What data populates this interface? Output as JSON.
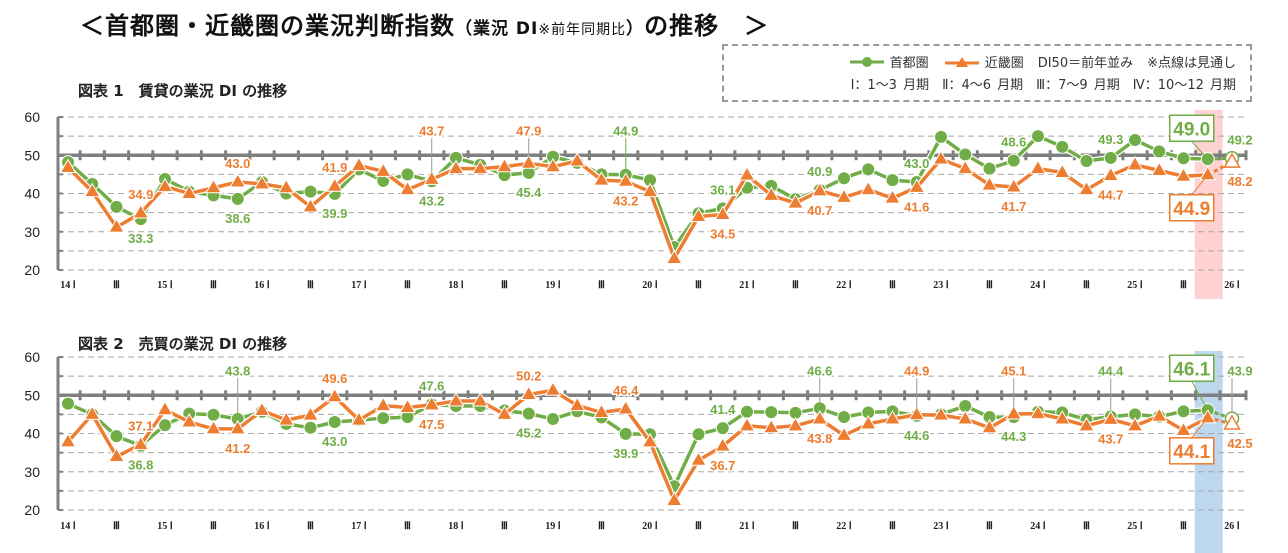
{
  "header": {
    "title_main": "＜首都圏・近畿圏の業況判断指数",
    "title_paren_open": "（業況 DI",
    "title_note": "※前年同期比",
    "title_paren_close": "）",
    "title_tail": "の推移　＞"
  },
  "legend": {
    "series1_label": "首都圏",
    "series2_label": "近畿圏",
    "baseline_note": "DI50＝前年並み",
    "dotted_note": "※点線は見通し",
    "quarters_note": "Ⅰ：1～3 月期　Ⅱ：4～6 月期　Ⅲ：7～9 月期　Ⅳ：10～12 月期"
  },
  "colors": {
    "tokyo": "#70ad47",
    "kinki": "#ed7d31",
    "baseline": "#7f7f7f",
    "grid": "#a6a6a6",
    "highlight1": "#ffd1d1",
    "highlight2": "#bdd7ee"
  },
  "chart_data": [
    {
      "type": "line",
      "title": "図表 1　賃貸の業況 DI の推移",
      "xlabel": "",
      "ylabel": "",
      "ylim": [
        20,
        60
      ],
      "yticks": [
        "60",
        "50",
        "40",
        "30",
        "20"
      ],
      "baseline": 50,
      "grid": true,
      "x_tick_labels": [
        "14 Ⅰ",
        "Ⅲ",
        "15 Ⅰ",
        "Ⅲ",
        "16 Ⅰ",
        "Ⅲ",
        "17 Ⅰ",
        "Ⅲ",
        "18 Ⅰ",
        "Ⅲ",
        "19 Ⅰ",
        "Ⅲ",
        "20 Ⅰ",
        "Ⅲ",
        "21 Ⅰ",
        "Ⅲ",
        "22 Ⅰ",
        "Ⅲ",
        "23 Ⅰ",
        "Ⅲ",
        "24 Ⅰ",
        "Ⅲ",
        "25 Ⅰ",
        "Ⅲ",
        "26 Ⅰ"
      ],
      "forecast_index": 48,
      "highlight_index": 47,
      "series": [
        {
          "name": "首都圏",
          "values": [
            48.2,
            42.5,
            36.5,
            33.3,
            43.8,
            40.5,
            39.5,
            38.6,
            43.0,
            40.0,
            40.5,
            39.9,
            46.3,
            43.3,
            45.0,
            43.2,
            49.3,
            47.5,
            44.8,
            45.4,
            49.6,
            48.0,
            45.0,
            44.9,
            43.5,
            26.0,
            34.8,
            36.1,
            41.5,
            42.0,
            38.5,
            40.9,
            44.0,
            46.3,
            43.5,
            43.0,
            54.8,
            50.2,
            46.5,
            48.6,
            55.0,
            52.2,
            48.5,
            49.3,
            54.0,
            51.0,
            49.2,
            49.0,
            49.2
          ]
        },
        {
          "name": "近畿圏",
          "values": [
            46.8,
            40.5,
            31.2,
            34.9,
            41.8,
            40.0,
            41.5,
            43.0,
            42.5,
            41.5,
            36.5,
            41.9,
            47.3,
            45.8,
            41.0,
            43.7,
            46.5,
            46.5,
            47.0,
            47.9,
            47.0,
            48.5,
            43.5,
            43.2,
            40.5,
            23.0,
            34.0,
            34.5,
            44.8,
            39.5,
            37.5,
            40.7,
            39.0,
            41.0,
            38.8,
            41.6,
            49.0,
            46.5,
            42.2,
            41.7,
            46.5,
            45.5,
            41.0,
            44.7,
            47.5,
            46.0,
            44.5,
            44.9,
            48.2
          ]
        }
      ],
      "annotations": [
        {
          "series": 0,
          "index": 3,
          "text": "33.3",
          "pos": "below"
        },
        {
          "series": 1,
          "index": 3,
          "text": "34.9",
          "pos": "above"
        },
        {
          "series": 0,
          "index": 7,
          "text": "38.6",
          "pos": "below"
        },
        {
          "series": 1,
          "index": 7,
          "text": "43.0",
          "pos": "above"
        },
        {
          "series": 0,
          "index": 11,
          "text": "39.9",
          "pos": "below"
        },
        {
          "series": 1,
          "index": 11,
          "text": "41.9",
          "pos": "above"
        },
        {
          "series": 0,
          "index": 15,
          "text": "43.2",
          "pos": "below"
        },
        {
          "series": 1,
          "index": 15,
          "text": "43.7",
          "pos": "above-far"
        },
        {
          "series": 0,
          "index": 19,
          "text": "45.4",
          "pos": "below"
        },
        {
          "series": 1,
          "index": 19,
          "text": "47.9",
          "pos": "above-far"
        },
        {
          "series": 0,
          "index": 23,
          "text": "44.9",
          "pos": "above-far"
        },
        {
          "series": 1,
          "index": 23,
          "text": "43.2",
          "pos": "below"
        },
        {
          "series": 0,
          "index": 27,
          "text": "36.1",
          "pos": "above"
        },
        {
          "series": 1,
          "index": 27,
          "text": "34.5",
          "pos": "below"
        },
        {
          "series": 0,
          "index": 31,
          "text": "40.9",
          "pos": "above"
        },
        {
          "series": 1,
          "index": 31,
          "text": "40.7",
          "pos": "below"
        },
        {
          "series": 0,
          "index": 35,
          "text": "43.0",
          "pos": "above"
        },
        {
          "series": 1,
          "index": 35,
          "text": "41.6",
          "pos": "below"
        },
        {
          "series": 0,
          "index": 39,
          "text": "48.6",
          "pos": "above"
        },
        {
          "series": 1,
          "index": 39,
          "text": "41.7",
          "pos": "below"
        },
        {
          "series": 0,
          "index": 43,
          "text": "49.3",
          "pos": "above"
        },
        {
          "series": 1,
          "index": 43,
          "text": "44.7",
          "pos": "below"
        },
        {
          "series": 0,
          "index": 47,
          "text": "49.0",
          "pos": "box-above"
        },
        {
          "series": 1,
          "index": 47,
          "text": "44.9",
          "pos": "box-below"
        },
        {
          "series": 0,
          "index": 48,
          "text": "49.2",
          "pos": "above"
        },
        {
          "series": 1,
          "index": 48,
          "text": "48.2",
          "pos": "below"
        }
      ]
    },
    {
      "type": "line",
      "title": "図表 2　売買の業況 DI の推移",
      "xlabel": "",
      "ylabel": "",
      "ylim": [
        20,
        60
      ],
      "yticks": [
        "60",
        "50",
        "40",
        "30",
        "20"
      ],
      "baseline": 50,
      "grid": true,
      "x_tick_labels": [
        "14 Ⅰ",
        "Ⅲ",
        "15 Ⅰ",
        "Ⅲ",
        "16 Ⅰ",
        "Ⅲ",
        "17 Ⅰ",
        "Ⅲ",
        "18 Ⅰ",
        "Ⅲ",
        "19 Ⅰ",
        "Ⅲ",
        "20 Ⅰ",
        "Ⅲ",
        "21 Ⅰ",
        "Ⅲ",
        "22 Ⅰ",
        "Ⅲ",
        "23 Ⅰ",
        "Ⅲ",
        "24 Ⅰ",
        "Ⅲ",
        "25 Ⅰ",
        "Ⅲ",
        "26 Ⅰ"
      ],
      "forecast_index": 48,
      "highlight_index": 47,
      "series": [
        {
          "name": "首都圏",
          "values": [
            47.8,
            45.0,
            39.3,
            36.8,
            42.2,
            45.2,
            44.9,
            43.8,
            45.7,
            42.5,
            41.5,
            43.0,
            43.5,
            44.0,
            44.3,
            47.6,
            47.2,
            47.2,
            46.0,
            45.2,
            43.8,
            45.8,
            44.2,
            39.9,
            39.8,
            26.2,
            39.8,
            41.4,
            45.7,
            45.6,
            45.4,
            46.6,
            44.3,
            45.5,
            45.8,
            44.6,
            45.0,
            47.2,
            44.3,
            44.3,
            45.7,
            45.5,
            43.6,
            44.4,
            45.0,
            44.4,
            45.8,
            46.1,
            43.9
          ]
        },
        {
          "name": "近畿圏",
          "values": [
            37.8,
            45.0,
            34.0,
            37.1,
            46.2,
            43.0,
            41.2,
            41.2,
            46.0,
            43.5,
            44.8,
            49.6,
            43.5,
            47.3,
            46.8,
            47.5,
            48.5,
            48.5,
            45.0,
            50.2,
            51.3,
            47.3,
            45.5,
            46.4,
            37.8,
            22.5,
            33.0,
            36.7,
            42.0,
            41.5,
            42.0,
            43.8,
            39.5,
            42.5,
            43.8,
            44.9,
            44.8,
            43.8,
            41.5,
            45.1,
            45.2,
            43.8,
            42.0,
            43.7,
            42.0,
            44.5,
            40.8,
            44.1,
            42.5
          ]
        }
      ],
      "annotations": [
        {
          "series": 0,
          "index": 3,
          "text": "36.8",
          "pos": "below"
        },
        {
          "series": 1,
          "index": 3,
          "text": "37.1",
          "pos": "above"
        },
        {
          "series": 0,
          "index": 7,
          "text": "43.8",
          "pos": "above-far"
        },
        {
          "series": 1,
          "index": 7,
          "text": "41.2",
          "pos": "below"
        },
        {
          "series": 0,
          "index": 11,
          "text": "43.0",
          "pos": "below"
        },
        {
          "series": 1,
          "index": 11,
          "text": "49.6",
          "pos": "above"
        },
        {
          "series": 0,
          "index": 15,
          "text": "47.6",
          "pos": "above"
        },
        {
          "series": 1,
          "index": 15,
          "text": "47.5",
          "pos": "below"
        },
        {
          "series": 0,
          "index": 19,
          "text": "45.2",
          "pos": "below"
        },
        {
          "series": 1,
          "index": 19,
          "text": "50.2",
          "pos": "above"
        },
        {
          "series": 0,
          "index": 23,
          "text": "39.9",
          "pos": "below"
        },
        {
          "series": 1,
          "index": 23,
          "text": "46.4",
          "pos": "above"
        },
        {
          "series": 0,
          "index": 27,
          "text": "41.4",
          "pos": "above"
        },
        {
          "series": 1,
          "index": 27,
          "text": "36.7",
          "pos": "below"
        },
        {
          "series": 0,
          "index": 31,
          "text": "46.6",
          "pos": "above-far"
        },
        {
          "series": 1,
          "index": 31,
          "text": "43.8",
          "pos": "below"
        },
        {
          "series": 0,
          "index": 35,
          "text": "44.6",
          "pos": "below"
        },
        {
          "series": 1,
          "index": 35,
          "text": "44.9",
          "pos": "above-far"
        },
        {
          "series": 0,
          "index": 39,
          "text": "44.3",
          "pos": "below"
        },
        {
          "series": 1,
          "index": 39,
          "text": "45.1",
          "pos": "above-far"
        },
        {
          "series": 0,
          "index": 43,
          "text": "44.4",
          "pos": "above-far"
        },
        {
          "series": 1,
          "index": 43,
          "text": "43.7",
          "pos": "below"
        },
        {
          "series": 0,
          "index": 47,
          "text": "46.1",
          "pos": "box-above"
        },
        {
          "series": 1,
          "index": 47,
          "text": "44.1",
          "pos": "box-below"
        },
        {
          "series": 0,
          "index": 48,
          "text": "43.9",
          "pos": "above-far"
        },
        {
          "series": 1,
          "index": 48,
          "text": "42.5",
          "pos": "below"
        }
      ]
    }
  ]
}
